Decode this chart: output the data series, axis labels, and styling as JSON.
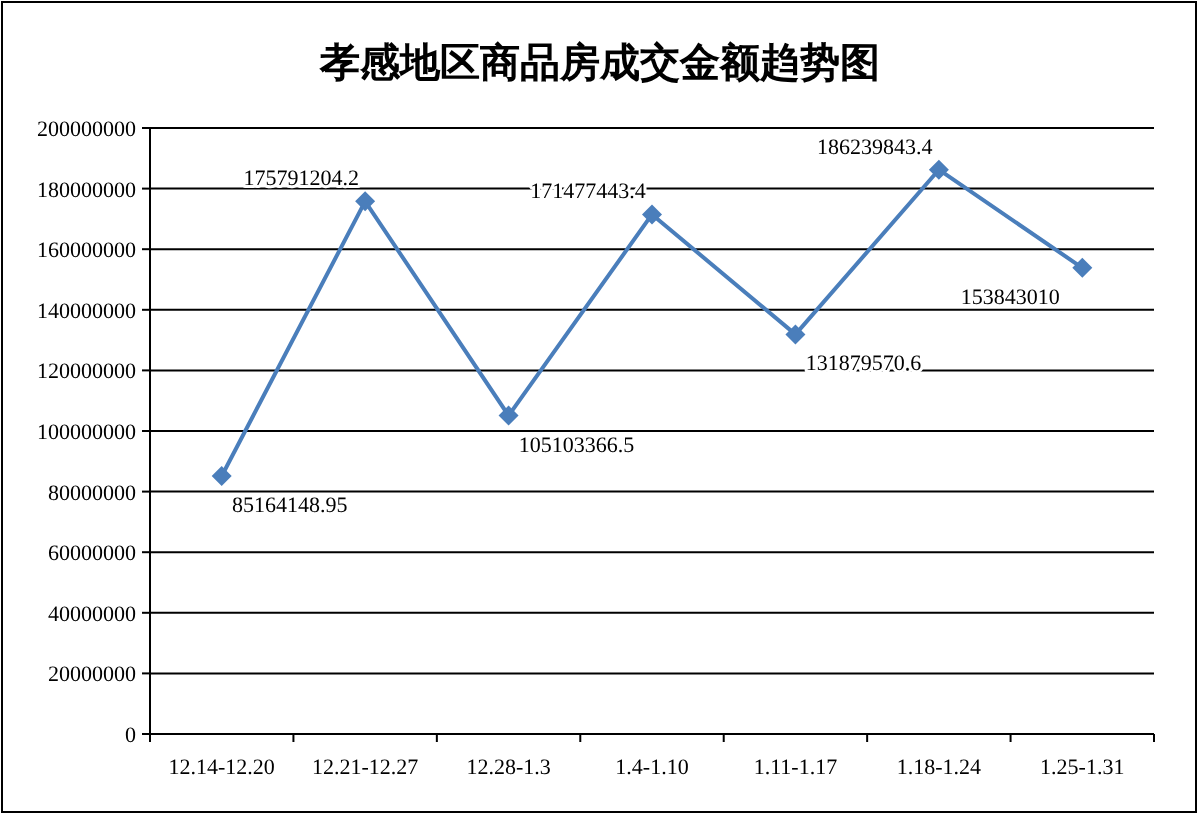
{
  "chart_data": {
    "type": "line",
    "title": "孝感地区商品房成交金额趋势图",
    "categories": [
      "12.14-12.20",
      "12.21-12.27",
      "12.28-1.3",
      "1.4-1.10",
      "1.11-1.17",
      "1.18-1.24",
      "1.25-1.31"
    ],
    "series": [
      {
        "color": "#4a7ebb",
        "values": [
          85164148.95,
          175791204.2,
          105103366.5,
          171477443.4,
          131879570.6,
          186239843.4,
          153843010
        ]
      }
    ],
    "ylim": [
      0,
      200000000
    ],
    "yticks": [
      0,
      20000000,
      40000000,
      60000000,
      80000000,
      100000000,
      120000000,
      140000000,
      160000000,
      180000000,
      200000000
    ],
    "grid": "y",
    "marker": "diamond",
    "data_labels": true
  }
}
